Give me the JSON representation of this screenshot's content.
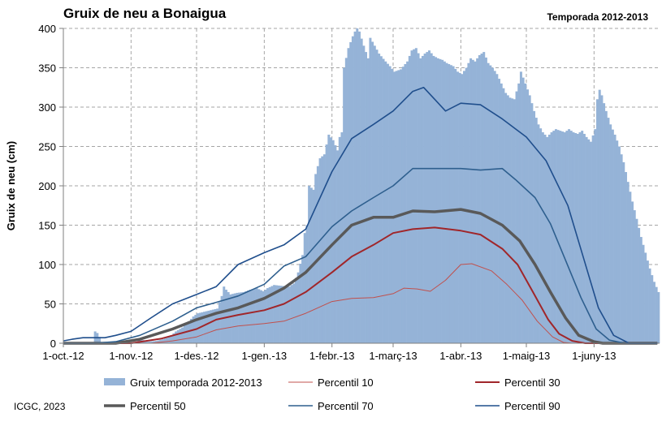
{
  "chart_data": {
    "type": "area",
    "title": "Gruix de neu a Bonaigua",
    "subtitle": "Temporada 2012-2013",
    "ylabel": "Gruix de neu (cm)",
    "xlabel": "",
    "credit": "ICGC, 2023",
    "ylim": [
      0,
      400
    ],
    "yticks": [
      "0",
      "50",
      "100",
      "150",
      "200",
      "250",
      "300",
      "350",
      "400"
    ],
    "grid": true,
    "legend_position": "bottom",
    "x_start": "2012-10-01",
    "x_end": "2013-06-30",
    "xticks": [
      {
        "date": "2012-10-01",
        "label": "1-oct.-12"
      },
      {
        "date": "2012-11-01",
        "label": "1-nov.-12"
      },
      {
        "date": "2012-12-01",
        "label": "1-des.-12"
      },
      {
        "date": "2013-01-01",
        "label": "1-gen.-13"
      },
      {
        "date": "2013-02-01",
        "label": "1-febr.-13"
      },
      {
        "date": "2013-03-01",
        "label": "1-març-13"
      },
      {
        "date": "2013-04-01",
        "label": "1-abr.-13"
      },
      {
        "date": "2013-05-01",
        "label": "1-maig-13"
      },
      {
        "date": "2013-06-01",
        "label": "1-juny-13"
      }
    ],
    "bars": {
      "name": "Gruix temporada 2012-2013",
      "color": "#95b3d7",
      "points": [
        [
          "2012-10-01",
          0
        ],
        [
          "2012-10-14",
          0
        ],
        [
          "2012-10-15",
          15
        ],
        [
          "2012-10-16",
          13
        ],
        [
          "2012-10-17",
          8
        ],
        [
          "2012-10-18",
          0
        ],
        [
          "2012-11-03",
          0
        ],
        [
          "2012-11-04",
          6
        ],
        [
          "2012-11-06",
          4
        ],
        [
          "2012-11-08",
          2
        ],
        [
          "2012-11-12",
          3
        ],
        [
          "2012-11-15",
          5
        ],
        [
          "2012-11-18",
          8
        ],
        [
          "2012-11-21",
          15
        ],
        [
          "2012-11-24",
          20
        ],
        [
          "2012-11-27",
          28
        ],
        [
          "2012-11-29",
          34
        ],
        [
          "2012-12-01",
          38
        ],
        [
          "2012-12-04",
          40
        ],
        [
          "2012-12-07",
          42
        ],
        [
          "2012-12-10",
          44
        ],
        [
          "2012-12-12",
          60
        ],
        [
          "2012-12-13",
          72
        ],
        [
          "2012-12-14",
          68
        ],
        [
          "2012-12-16",
          62
        ],
        [
          "2012-12-19",
          64
        ],
        [
          "2012-12-22",
          65
        ],
        [
          "2012-12-25",
          68
        ],
        [
          "2012-12-28",
          70
        ],
        [
          "2012-12-31",
          66
        ],
        [
          "2013-01-02",
          70
        ],
        [
          "2013-01-05",
          74
        ],
        [
          "2013-01-08",
          73
        ],
        [
          "2013-01-12",
          72
        ],
        [
          "2013-01-14",
          76
        ],
        [
          "2013-01-16",
          90
        ],
        [
          "2013-01-18",
          112
        ],
        [
          "2013-01-19",
          140
        ],
        [
          "2013-01-20",
          150
        ],
        [
          "2013-01-21",
          200
        ],
        [
          "2013-01-23",
          195
        ],
        [
          "2013-01-24",
          215
        ],
        [
          "2013-01-26",
          235
        ],
        [
          "2013-01-28",
          240
        ],
        [
          "2013-01-30",
          265
        ],
        [
          "2013-02-01",
          258
        ],
        [
          "2013-02-03",
          245
        ],
        [
          "2013-02-04",
          262
        ],
        [
          "2013-02-05",
          268
        ],
        [
          "2013-02-06",
          350
        ],
        [
          "2013-02-08",
          375
        ],
        [
          "2013-02-10",
          390
        ],
        [
          "2013-02-12",
          402
        ],
        [
          "2013-02-13",
          396
        ],
        [
          "2013-02-15",
          378
        ],
        [
          "2013-02-17",
          362
        ],
        [
          "2013-02-18",
          388
        ],
        [
          "2013-02-20",
          378
        ],
        [
          "2013-02-22",
          368
        ],
        [
          "2013-02-25",
          358
        ],
        [
          "2013-02-27",
          352
        ],
        [
          "2013-03-01",
          345
        ],
        [
          "2013-03-04",
          348
        ],
        [
          "2013-03-07",
          358
        ],
        [
          "2013-03-09",
          372
        ],
        [
          "2013-03-11",
          375
        ],
        [
          "2013-03-13",
          362
        ],
        [
          "2013-03-15",
          368
        ],
        [
          "2013-03-17",
          372
        ],
        [
          "2013-03-19",
          365
        ],
        [
          "2013-03-21",
          362
        ],
        [
          "2013-03-23",
          360
        ],
        [
          "2013-03-25",
          356
        ],
        [
          "2013-03-28",
          352
        ],
        [
          "2013-03-30",
          345
        ],
        [
          "2013-04-01",
          342
        ],
        [
          "2013-04-03",
          350
        ],
        [
          "2013-04-05",
          362
        ],
        [
          "2013-04-07",
          358
        ],
        [
          "2013-04-09",
          366
        ],
        [
          "2013-04-11",
          370
        ],
        [
          "2013-04-13",
          356
        ],
        [
          "2013-04-15",
          350
        ],
        [
          "2013-04-17",
          342
        ],
        [
          "2013-04-19",
          330
        ],
        [
          "2013-04-21",
          318
        ],
        [
          "2013-04-23",
          312
        ],
        [
          "2013-04-25",
          310
        ],
        [
          "2013-04-27",
          330
        ],
        [
          "2013-04-28",
          345
        ],
        [
          "2013-04-30",
          330
        ],
        [
          "2013-05-02",
          315
        ],
        [
          "2013-05-04",
          295
        ],
        [
          "2013-05-06",
          278
        ],
        [
          "2013-05-08",
          268
        ],
        [
          "2013-05-10",
          262
        ],
        [
          "2013-05-12",
          268
        ],
        [
          "2013-05-14",
          272
        ],
        [
          "2013-05-16",
          270
        ],
        [
          "2013-05-18",
          268
        ],
        [
          "2013-05-20",
          272
        ],
        [
          "2013-05-22",
          268
        ],
        [
          "2013-05-24",
          266
        ],
        [
          "2013-05-26",
          270
        ],
        [
          "2013-05-28",
          262
        ],
        [
          "2013-05-30",
          256
        ],
        [
          "2013-06-01",
          272
        ],
        [
          "2013-06-02",
          310
        ],
        [
          "2013-06-03",
          322
        ],
        [
          "2013-06-04",
          315
        ],
        [
          "2013-06-06",
          295
        ],
        [
          "2013-06-08",
          278
        ],
        [
          "2013-06-10",
          265
        ],
        [
          "2013-06-12",
          250
        ],
        [
          "2013-06-14",
          230
        ],
        [
          "2013-06-16",
          205
        ],
        [
          "2013-06-18",
          180
        ],
        [
          "2013-06-20",
          158
        ],
        [
          "2013-06-22",
          135
        ],
        [
          "2013-06-24",
          115
        ],
        [
          "2013-06-26",
          95
        ],
        [
          "2013-06-28",
          78
        ],
        [
          "2013-06-30",
          65
        ]
      ]
    },
    "series": [
      {
        "name": "Percentil 10",
        "color": "#c0504d",
        "width": 1,
        "points": [
          [
            "2012-10-01",
            0
          ],
          [
            "2012-11-10",
            0
          ],
          [
            "2012-11-20",
            3
          ],
          [
            "2012-12-01",
            8
          ],
          [
            "2012-12-10",
            17
          ],
          [
            "2012-12-20",
            22
          ],
          [
            "2013-01-01",
            25
          ],
          [
            "2013-01-10",
            28
          ],
          [
            "2013-01-20",
            38
          ],
          [
            "2013-02-01",
            53
          ],
          [
            "2013-02-10",
            57
          ],
          [
            "2013-02-20",
            58
          ],
          [
            "2013-03-01",
            63
          ],
          [
            "2013-03-06",
            70
          ],
          [
            "2013-03-12",
            69
          ],
          [
            "2013-03-18",
            66
          ],
          [
            "2013-03-25",
            80
          ],
          [
            "2013-04-01",
            100
          ],
          [
            "2013-04-06",
            101
          ],
          [
            "2013-04-15",
            92
          ],
          [
            "2013-04-22",
            75
          ],
          [
            "2013-04-29",
            55
          ],
          [
            "2013-05-06",
            28
          ],
          [
            "2013-05-13",
            8
          ],
          [
            "2013-05-18",
            1
          ],
          [
            "2013-05-22",
            0
          ],
          [
            "2013-06-30",
            0
          ]
        ]
      },
      {
        "name": "Percentil 30",
        "color": "#a0262a",
        "width": 2,
        "points": [
          [
            "2012-10-01",
            0
          ],
          [
            "2012-11-01",
            0
          ],
          [
            "2012-11-15",
            6
          ],
          [
            "2012-12-01",
            18
          ],
          [
            "2012-12-10",
            30
          ],
          [
            "2012-12-20",
            36
          ],
          [
            "2013-01-01",
            42
          ],
          [
            "2013-01-10",
            50
          ],
          [
            "2013-01-20",
            65
          ],
          [
            "2013-02-01",
            90
          ],
          [
            "2013-02-10",
            110
          ],
          [
            "2013-02-20",
            125
          ],
          [
            "2013-03-01",
            140
          ],
          [
            "2013-03-10",
            145
          ],
          [
            "2013-03-20",
            147
          ],
          [
            "2013-04-01",
            143
          ],
          [
            "2013-04-10",
            138
          ],
          [
            "2013-04-20",
            120
          ],
          [
            "2013-04-27",
            100
          ],
          [
            "2013-05-04",
            65
          ],
          [
            "2013-05-11",
            30
          ],
          [
            "2013-05-16",
            12
          ],
          [
            "2013-05-22",
            3
          ],
          [
            "2013-05-28",
            0
          ],
          [
            "2013-06-30",
            0
          ]
        ]
      },
      {
        "name": "Percentil 50",
        "color": "#595959",
        "width": 3.5,
        "points": [
          [
            "2012-10-01",
            0
          ],
          [
            "2012-10-25",
            0
          ],
          [
            "2012-11-05",
            5
          ],
          [
            "2012-11-20",
            18
          ],
          [
            "2012-12-01",
            30
          ],
          [
            "2012-12-10",
            38
          ],
          [
            "2012-12-20",
            45
          ],
          [
            "2013-01-01",
            57
          ],
          [
            "2013-01-10",
            70
          ],
          [
            "2013-01-20",
            90
          ],
          [
            "2013-02-01",
            125
          ],
          [
            "2013-02-10",
            150
          ],
          [
            "2013-02-20",
            160
          ],
          [
            "2013-03-01",
            160
          ],
          [
            "2013-03-10",
            168
          ],
          [
            "2013-03-20",
            167
          ],
          [
            "2013-04-01",
            170
          ],
          [
            "2013-04-10",
            165
          ],
          [
            "2013-04-20",
            150
          ],
          [
            "2013-04-28",
            130
          ],
          [
            "2013-05-05",
            100
          ],
          [
            "2013-05-12",
            65
          ],
          [
            "2013-05-19",
            32
          ],
          [
            "2013-05-25",
            10
          ],
          [
            "2013-06-01",
            2
          ],
          [
            "2013-06-05",
            0
          ],
          [
            "2013-06-30",
            0
          ]
        ]
      },
      {
        "name": "Percentil 70",
        "color": "#2e5f8e",
        "width": 1.6,
        "points": [
          [
            "2012-10-01",
            0
          ],
          [
            "2012-10-15",
            0
          ],
          [
            "2012-10-25",
            2
          ],
          [
            "2012-11-05",
            10
          ],
          [
            "2012-11-20",
            28
          ],
          [
            "2012-12-01",
            45
          ],
          [
            "2012-12-10",
            52
          ],
          [
            "2012-12-20",
            60
          ],
          [
            "2013-01-01",
            75
          ],
          [
            "2013-01-10",
            98
          ],
          [
            "2013-01-20",
            110
          ],
          [
            "2013-02-01",
            148
          ],
          [
            "2013-02-10",
            168
          ],
          [
            "2013-02-20",
            185
          ],
          [
            "2013-03-01",
            200
          ],
          [
            "2013-03-10",
            222
          ],
          [
            "2013-03-20",
            222
          ],
          [
            "2013-04-01",
            222
          ],
          [
            "2013-04-10",
            220
          ],
          [
            "2013-04-20",
            222
          ],
          [
            "2013-04-26",
            208
          ],
          [
            "2013-05-05",
            185
          ],
          [
            "2013-05-12",
            152
          ],
          [
            "2013-05-19",
            105
          ],
          [
            "2013-05-26",
            58
          ],
          [
            "2013-06-02",
            18
          ],
          [
            "2013-06-08",
            4
          ],
          [
            "2013-06-15",
            0
          ],
          [
            "2013-06-30",
            0
          ]
        ]
      },
      {
        "name": "Percentil 90",
        "color": "#1f4e8c",
        "width": 1.6,
        "points": [
          [
            "2012-10-01",
            3
          ],
          [
            "2012-10-05",
            5
          ],
          [
            "2012-10-10",
            7
          ],
          [
            "2012-10-20",
            7
          ],
          [
            "2012-10-25",
            10
          ],
          [
            "2012-11-01",
            15
          ],
          [
            "2012-11-10",
            32
          ],
          [
            "2012-11-20",
            50
          ],
          [
            "2012-12-01",
            62
          ],
          [
            "2012-12-10",
            72
          ],
          [
            "2012-12-20",
            100
          ],
          [
            "2013-01-01",
            115
          ],
          [
            "2013-01-10",
            125
          ],
          [
            "2013-01-20",
            145
          ],
          [
            "2013-02-01",
            218
          ],
          [
            "2013-02-10",
            260
          ],
          [
            "2013-02-20",
            278
          ],
          [
            "2013-03-01",
            295
          ],
          [
            "2013-03-10",
            320
          ],
          [
            "2013-03-15",
            325
          ],
          [
            "2013-03-20",
            310
          ],
          [
            "2013-03-25",
            295
          ],
          [
            "2013-04-01",
            305
          ],
          [
            "2013-04-10",
            303
          ],
          [
            "2013-04-20",
            285
          ],
          [
            "2013-05-01",
            262
          ],
          [
            "2013-05-10",
            232
          ],
          [
            "2013-05-20",
            175
          ],
          [
            "2013-05-27",
            110
          ],
          [
            "2013-06-03",
            45
          ],
          [
            "2013-06-10",
            10
          ],
          [
            "2013-06-17",
            0
          ],
          [
            "2013-06-30",
            0
          ]
        ]
      }
    ]
  }
}
